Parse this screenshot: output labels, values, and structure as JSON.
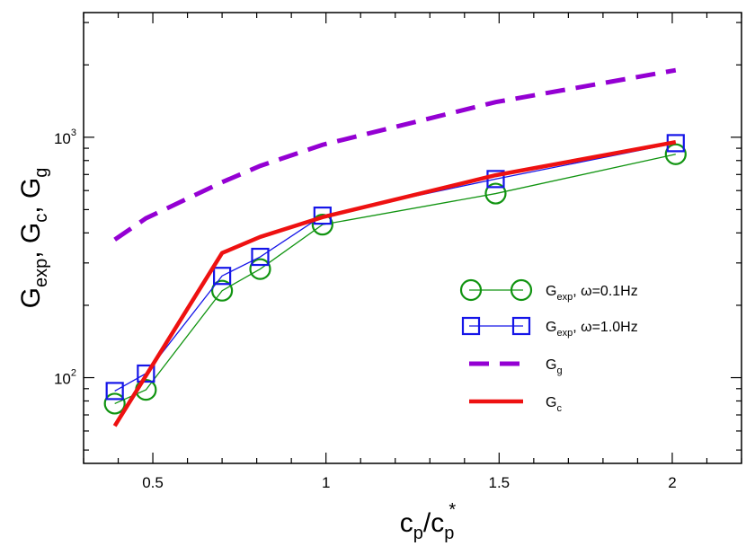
{
  "chart_data": {
    "type": "line",
    "title": "",
    "xlabel": {
      "base": "c",
      "sub": "p",
      "slash": "/",
      "base2": "c",
      "sub2": "p",
      "sup2": "*"
    },
    "ylabel": {
      "parts": [
        {
          "base": "G",
          "sub": "exp",
          "sep": ","
        },
        {
          "base": "G",
          "sub": "c",
          "sep": ","
        },
        {
          "base": "G",
          "sub": "g",
          "sep": ""
        }
      ]
    },
    "x_scale": "linear",
    "y_scale": "log",
    "xlim": [
      0.3,
      2.2
    ],
    "ylim": [
      44,
      3300
    ],
    "x_ticks": [
      0.5,
      1,
      1.5,
      2
    ],
    "x_tick_labels": [
      "0.5",
      "1",
      "1.5",
      "2"
    ],
    "y_ticks": [
      {
        "base": "10",
        "exp": "2",
        "value": 100
      },
      {
        "base": "10",
        "exp": "3",
        "value": 1000
      }
    ],
    "legend_position": "bottom-right",
    "series": [
      {
        "name": "G_exp, ω=0.1Hz",
        "legend": {
          "base": "G",
          "sub": "exp",
          "rest": ", ω=0.1Hz"
        },
        "color": "#119411",
        "marker": "circle",
        "line_style": "solid",
        "x": [
          0.39,
          0.48,
          0.7,
          0.81,
          0.99,
          1.49,
          2.01
        ],
        "y": [
          78,
          89,
          230,
          283,
          433,
          583,
          850
        ]
      },
      {
        "name": "G_exp, ω=1.0Hz",
        "legend": {
          "base": "G",
          "sub": "exp",
          "rest": ", ω=1.0Hz"
        },
        "color": "#1515e8",
        "marker": "square",
        "line_style": "solid",
        "x": [
          0.39,
          0.48,
          0.7,
          0.81,
          0.99,
          1.49,
          2.01
        ],
        "y": [
          88,
          104,
          265,
          318,
          472,
          670,
          945
        ]
      },
      {
        "name": "G_g",
        "legend": {
          "base": "G",
          "sub": "g",
          "rest": ""
        },
        "color": "#9400d3",
        "marker": "none",
        "line_style": "dashed",
        "x": [
          0.39,
          0.48,
          0.7,
          0.81,
          0.99,
          1.49,
          2.01
        ],
        "y": [
          375,
          460,
          650,
          760,
          930,
          1400,
          1900
        ]
      },
      {
        "name": "G_c",
        "legend": {
          "base": "G",
          "sub": "c",
          "rest": ""
        },
        "color": "#ee1111",
        "marker": "none",
        "line_style": "solid-thick",
        "x": [
          0.39,
          0.7,
          0.81,
          0.99,
          1.49,
          2.01
        ],
        "y": [
          63,
          330,
          385,
          465,
          695,
          955
        ]
      }
    ]
  }
}
